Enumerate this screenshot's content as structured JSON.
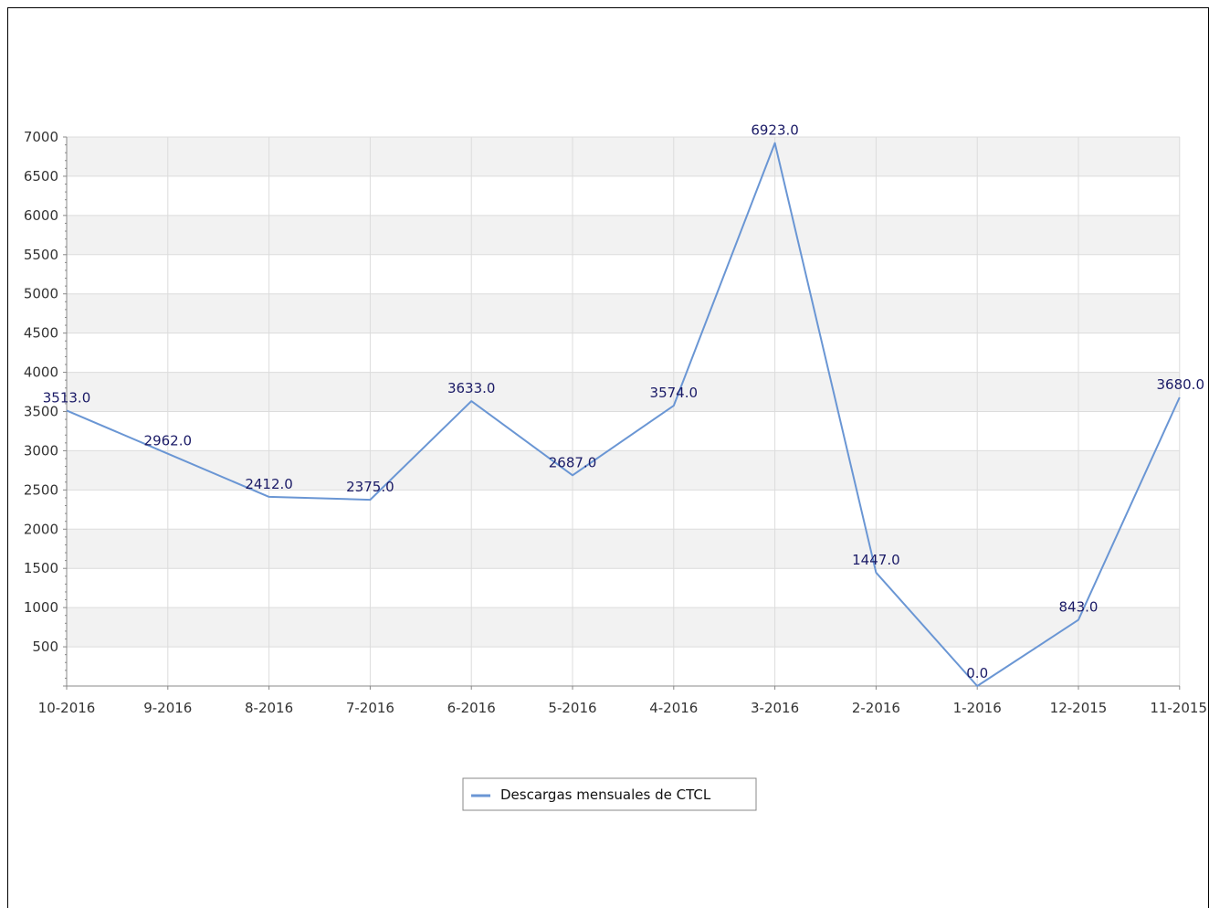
{
  "chart_data": {
    "type": "line",
    "title": "",
    "xlabel": "",
    "ylabel": "",
    "categories": [
      "10-2016",
      "9-2016",
      "8-2016",
      "7-2016",
      "6-2016",
      "5-2016",
      "4-2016",
      "3-2016",
      "2-2016",
      "1-2016",
      "12-2015",
      "11-2015"
    ],
    "series": [
      {
        "name": "Descargas mensuales de CTCL",
        "values": [
          3513.0,
          2962.0,
          2412.0,
          2375.0,
          3633.0,
          2687.0,
          3574.0,
          6923.0,
          1447.0,
          0.0,
          843.0,
          3680.0
        ],
        "labels": [
          "3513.0",
          "2962.0",
          "2412.0",
          "2375.0",
          "3633.0",
          "2687.0",
          "3574.0",
          "6923.0",
          "1447.0",
          "0.0",
          "843.0",
          "3680.0"
        ],
        "color": "#6a96d4"
      }
    ],
    "yticks": [
      500,
      1000,
      1500,
      2000,
      2500,
      3000,
      3500,
      4000,
      4500,
      5000,
      5500,
      6000,
      6500,
      7000
    ],
    "ylim": [
      0,
      7000
    ],
    "grid": true,
    "legend_position": "bottom-center",
    "colors": {
      "line": "#6a96d4",
      "band": "#f2f2f2",
      "grid": "#dcdcdc",
      "label": "#1a1a66"
    }
  }
}
